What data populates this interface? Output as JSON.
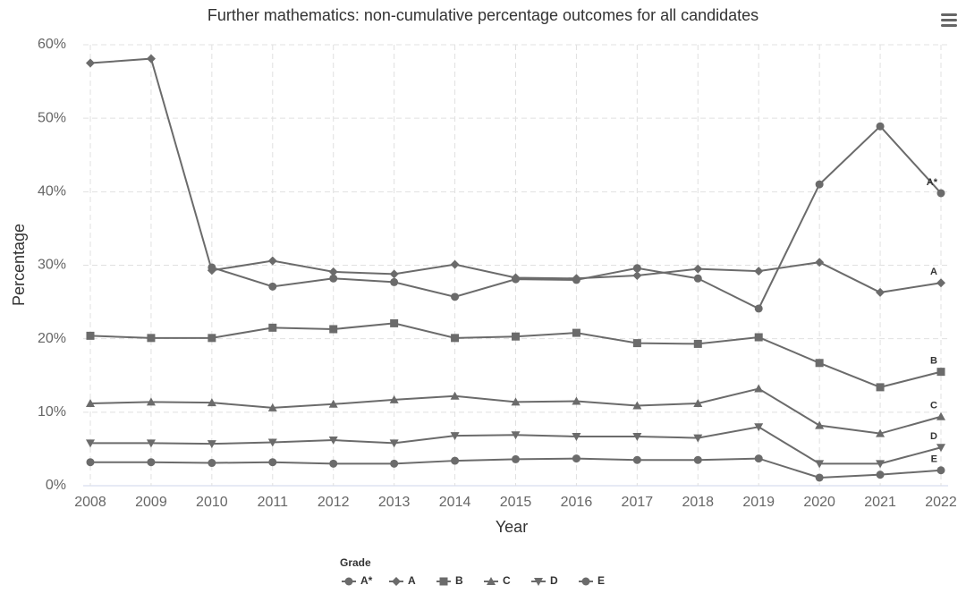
{
  "chart_data": {
    "type": "line",
    "title": "Further mathematics: non-cumulative percentage outcomes for all candidates",
    "x_label": "Year",
    "y_label": "Percentage",
    "legend_title": "Grade",
    "x": [
      2008,
      2009,
      2010,
      2011,
      2012,
      2013,
      2014,
      2015,
      2016,
      2017,
      2018,
      2019,
      2020,
      2021,
      2022
    ],
    "xlim": [
      2008,
      2022
    ],
    "xticks": [
      2008,
      2009,
      2010,
      2011,
      2012,
      2013,
      2014,
      2015,
      2016,
      2017,
      2018,
      2019,
      2020,
      2021,
      2022
    ],
    "ylim": [
      0,
      60
    ],
    "yticks": [
      {
        "value": 0,
        "label": "0%"
      },
      {
        "value": 10,
        "label": "10%"
      },
      {
        "value": 20,
        "label": "20%"
      },
      {
        "value": 30,
        "label": "30%"
      },
      {
        "value": 40,
        "label": "40%"
      },
      {
        "value": 50,
        "label": "50%"
      },
      {
        "value": 60,
        "label": "60%"
      }
    ],
    "grid": true,
    "series": [
      {
        "name": "A*",
        "color": "#6b6b6b",
        "marker": "circle",
        "values": [
          null,
          null,
          29.7,
          27.1,
          28.2,
          27.7,
          25.7,
          28.1,
          28.0,
          29.6,
          28.2,
          24.1,
          41.0,
          48.9,
          39.8
        ]
      },
      {
        "name": "A",
        "color": "#6b6b6b",
        "marker": "diamond",
        "values": [
          57.5,
          58.1,
          29.3,
          30.6,
          29.1,
          28.8,
          30.1,
          28.3,
          28.2,
          28.6,
          29.5,
          29.2,
          30.4,
          26.3,
          27.6
        ]
      },
      {
        "name": "B",
        "color": "#6b6b6b",
        "marker": "square",
        "values": [
          20.4,
          20.1,
          20.1,
          21.5,
          21.3,
          22.1,
          20.1,
          20.3,
          20.8,
          19.4,
          19.3,
          20.2,
          16.7,
          13.4,
          15.5
        ]
      },
      {
        "name": "C",
        "color": "#6b6b6b",
        "marker": "triangle",
        "values": [
          11.2,
          11.4,
          11.3,
          10.6,
          11.1,
          11.7,
          12.2,
          11.4,
          11.5,
          10.9,
          11.2,
          13.2,
          8.2,
          7.1,
          9.4
        ]
      },
      {
        "name": "D",
        "color": "#6b6b6b",
        "marker": "triangle-down",
        "values": [
          5.8,
          5.8,
          5.7,
          5.9,
          6.2,
          5.8,
          6.8,
          6.9,
          6.7,
          6.7,
          6.5,
          8.0,
          3.0,
          3.0,
          5.2
        ]
      },
      {
        "name": "E",
        "color": "#6b6b6b",
        "marker": "circle",
        "values": [
          3.2,
          3.2,
          3.1,
          3.2,
          3.0,
          3.0,
          3.4,
          3.6,
          3.7,
          3.5,
          3.5,
          3.7,
          1.1,
          1.5,
          2.1
        ]
      }
    ]
  }
}
